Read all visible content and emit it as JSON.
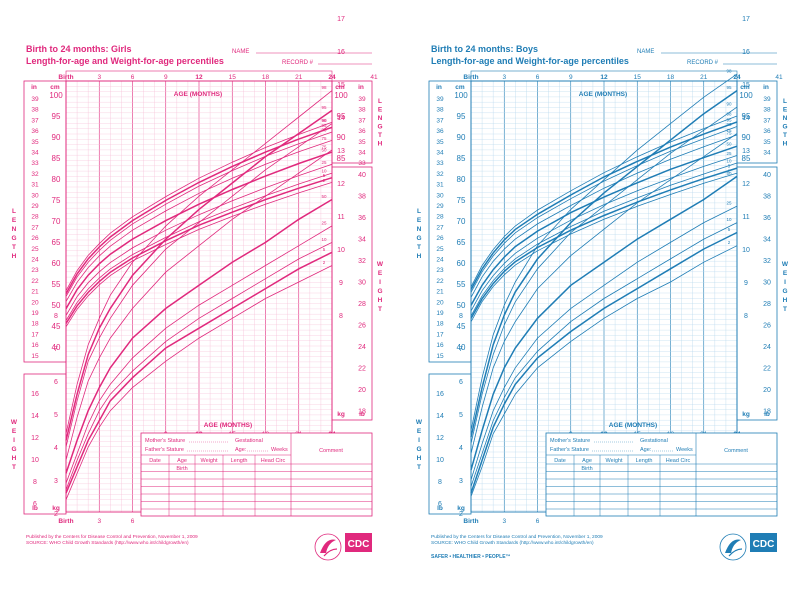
{
  "chart_data": [
    {
      "type": "line",
      "sex": "girls",
      "color": "#e0297d",
      "light_color": "#f6c2d8",
      "title": "Birth to 24 months: Girls",
      "subtitle": "Length-for-age and Weight-for-age percentiles",
      "name_label": "NAME",
      "record_label": "RECORD #",
      "birth_label": "Birth",
      "age_label": "AGE (MONTHS)",
      "x_ticks_top": [
        "3",
        "6",
        "9",
        "12",
        "15",
        "18",
        "21",
        "24"
      ],
      "x_ticks_bottom": [
        "3",
        "6"
      ],
      "x_ticks_mid": [
        "9",
        "12",
        "15",
        "18",
        "21",
        "24"
      ],
      "top_right_number": "41",
      "length_label": "LENGTH",
      "weight_label": "WEIGHT",
      "in_label": "in",
      "cm_label": "cm",
      "lb_label": "lb",
      "kg_label": "kg",
      "length_in_ticks": [
        "39",
        "38",
        "37",
        "36",
        "35",
        "34",
        "33",
        "32",
        "31",
        "30",
        "29",
        "28",
        "27",
        "26",
        "25",
        "24",
        "23",
        "22",
        "21",
        "20",
        "19",
        "18",
        "17",
        "16",
        "15"
      ],
      "length_cm_ticks": [
        "100",
        "95",
        "90",
        "85",
        "80",
        "75",
        "70",
        "65",
        "60",
        "55",
        "50",
        "45",
        "40"
      ],
      "length_right_cm_ticks": [
        "100",
        "95",
        "90",
        "85"
      ],
      "length_right_in_ticks": [
        "39",
        "38",
        "37",
        "36",
        "35",
        "34",
        "33"
      ],
      "weight_right_lb_ticks": [
        "40",
        "38",
        "36",
        "34",
        "32",
        "30",
        "28",
        "26",
        "24",
        "22",
        "20",
        "18"
      ],
      "weight_right_kg_ticks": [
        "18",
        "17",
        "16",
        "15",
        "14",
        "13",
        "12",
        "11",
        "10",
        "9",
        "8"
      ],
      "weight_left_kg_ticks": [
        "8",
        "7",
        "6",
        "5",
        "4",
        "3",
        "2"
      ],
      "weight_left_lb_ticks": [
        "16",
        "14",
        "12",
        "10",
        "8",
        "6"
      ],
      "percentiles": [
        "98",
        "95",
        "90",
        "75",
        "50",
        "25",
        "10",
        "5",
        "2"
      ],
      "age_months": [
        0,
        1,
        2,
        3,
        4,
        6,
        9,
        12,
        15,
        18,
        21,
        24
      ],
      "length_cm_series": [
        {
          "name": "98",
          "values": [
            53.4,
            58.2,
            61.8,
            64.6,
            67.1,
            71.0,
            75.8,
            80.2,
            84.0,
            87.5,
            90.6,
            93.5
          ]
        },
        {
          "name": "95",
          "values": [
            52.7,
            57.4,
            61.0,
            63.8,
            66.2,
            70.1,
            74.9,
            79.2,
            83.0,
            86.4,
            89.5,
            92.3
          ]
        },
        {
          "name": "90",
          "values": [
            52.0,
            56.7,
            60.2,
            63.0,
            65.4,
            69.3,
            74.0,
            78.3,
            82.0,
            85.4,
            88.4,
            91.2
          ]
        },
        {
          "name": "75",
          "values": [
            50.8,
            55.4,
            58.9,
            61.7,
            64.0,
            67.8,
            72.4,
            76.6,
            80.2,
            83.5,
            86.5,
            89.2
          ]
        },
        {
          "name": "50",
          "values": [
            49.1,
            53.7,
            57.1,
            59.8,
            62.1,
            65.7,
            70.1,
            74.0,
            77.5,
            80.7,
            83.7,
            86.4
          ]
        },
        {
          "name": "25",
          "values": [
            47.5,
            52.0,
            55.3,
            57.9,
            60.1,
            63.6,
            67.8,
            71.5,
            74.8,
            77.9,
            80.8,
            83.5
          ]
        },
        {
          "name": "10",
          "values": [
            46.3,
            50.6,
            53.8,
            56.4,
            58.6,
            62.0,
            66.1,
            69.8,
            73.0,
            76.0,
            78.8,
            81.4
          ]
        },
        {
          "name": "5",
          "values": [
            45.6,
            49.8,
            53.0,
            55.6,
            57.8,
            61.2,
            65.3,
            69.0,
            72.1,
            75.1,
            77.8,
            80.3
          ]
        },
        {
          "name": "2",
          "values": [
            44.8,
            49.0,
            52.2,
            54.8,
            57.0,
            60.5,
            64.4,
            68.0,
            71.1,
            74.0,
            76.7,
            79.2
          ]
        }
      ],
      "weight_kg_series": [
        {
          "name": "98",
          "values": [
            4.4,
            5.9,
            7.1,
            7.9,
            8.6,
            9.6,
            10.7,
            11.6,
            12.4,
            13.2,
            14.0,
            14.8
          ]
        },
        {
          "name": "95",
          "values": [
            4.2,
            5.6,
            6.8,
            7.6,
            8.2,
            9.2,
            10.3,
            11.2,
            12.0,
            12.8,
            13.5,
            14.2
          ]
        },
        {
          "name": "90",
          "values": [
            4.0,
            5.4,
            6.6,
            7.3,
            7.9,
            8.9,
            10.0,
            10.8,
            11.6,
            12.4,
            13.1,
            13.8
          ]
        },
        {
          "name": "75",
          "values": [
            3.6,
            4.9,
            6.0,
            6.7,
            7.3,
            8.2,
            9.3,
            10.1,
            10.9,
            11.6,
            12.3,
            13.0
          ]
        },
        {
          "name": "50",
          "values": [
            3.2,
            4.2,
            5.1,
            5.8,
            6.4,
            7.3,
            8.2,
            8.9,
            9.6,
            10.2,
            10.9,
            11.5
          ]
        },
        {
          "name": "25",
          "values": [
            2.9,
            3.8,
            4.7,
            5.4,
            5.9,
            6.7,
            7.6,
            8.3,
            8.9,
            9.5,
            10.1,
            10.7
          ]
        },
        {
          "name": "10",
          "values": [
            2.7,
            3.6,
            4.4,
            5.1,
            5.6,
            6.3,
            7.2,
            7.9,
            8.5,
            9.1,
            9.7,
            10.2
          ]
        },
        {
          "name": "5",
          "values": [
            2.6,
            3.4,
            4.2,
            4.8,
            5.4,
            6.1,
            7.0,
            7.6,
            8.2,
            8.8,
            9.4,
            9.9
          ]
        },
        {
          "name": "2",
          "values": [
            2.4,
            3.2,
            4.0,
            4.6,
            5.1,
            5.8,
            6.6,
            7.3,
            7.9,
            8.5,
            9.0,
            9.5
          ]
        }
      ],
      "table": {
        "mother_stature": "Mother's Stature",
        "father_stature": "Father's Stature",
        "gestational": "Gestational",
        "age_weeks": "Age:",
        "weeks": "Weeks",
        "comment": "Comment",
        "columns": [
          "Date",
          "Age",
          "Weight",
          "Length",
          "Head Circ"
        ],
        "first_age": "Birth"
      },
      "footer_line1": "Published by the Centers for Disease Control and Prevention, November 1, 2009",
      "footer_line2": "SOURCE: WHO Child Growth Standards (http://www.who.int/childgrowth/en)",
      "logo_text": "CDC",
      "tagline": ""
    },
    {
      "type": "line",
      "sex": "boys",
      "color": "#1f7db5",
      "light_color": "#b9d9ee",
      "title": "Birth to 24 months: Boys",
      "subtitle": "Length-for-age and Weight-for-age percentiles",
      "name_label": "NAME",
      "record_label": "RECORD #",
      "birth_label": "Birth",
      "age_label": "AGE (MONTHS)",
      "x_ticks_top": [
        "3",
        "6",
        "9",
        "12",
        "15",
        "18",
        "21",
        "24"
      ],
      "x_ticks_bottom": [
        "3",
        "6"
      ],
      "x_ticks_mid": [
        "9",
        "12",
        "15",
        "18",
        "21",
        "24"
      ],
      "top_right_number": "41",
      "length_label": "LENGTH",
      "weight_label": "WEIGHT",
      "in_label": "in",
      "cm_label": "cm",
      "lb_label": "lb",
      "kg_label": "kg",
      "length_in_ticks": [
        "39",
        "38",
        "37",
        "36",
        "35",
        "34",
        "33",
        "32",
        "31",
        "30",
        "29",
        "28",
        "27",
        "26",
        "25",
        "24",
        "23",
        "22",
        "21",
        "20",
        "19",
        "18",
        "17",
        "16",
        "15"
      ],
      "length_cm_ticks": [
        "100",
        "95",
        "90",
        "85",
        "80",
        "75",
        "70",
        "65",
        "60",
        "55",
        "50",
        "45",
        "40"
      ],
      "length_right_cm_ticks": [
        "100",
        "95",
        "90",
        "85"
      ],
      "length_right_in_ticks": [
        "39",
        "38",
        "37",
        "36",
        "35",
        "34"
      ],
      "weight_right_lb_ticks": [
        "40",
        "38",
        "36",
        "34",
        "32",
        "30",
        "28",
        "26",
        "24",
        "22",
        "20",
        "18"
      ],
      "weight_right_kg_ticks": [
        "18",
        "17",
        "16",
        "15",
        "14",
        "13",
        "12",
        "11",
        "10",
        "9",
        "8"
      ],
      "weight_left_kg_ticks": [
        "8",
        "7",
        "6",
        "5",
        "4",
        "3",
        "2"
      ],
      "weight_left_lb_ticks": [
        "16",
        "14",
        "12",
        "10",
        "8",
        "6"
      ],
      "percentiles": [
        "98",
        "95",
        "90",
        "75",
        "50",
        "25",
        "10",
        "5",
        "2"
      ],
      "age_months": [
        0,
        1,
        2,
        3,
        4,
        6,
        9,
        12,
        15,
        18,
        21,
        24
      ],
      "length_cm_series": [
        {
          "name": "98",
          "values": [
            54.3,
            59.4,
            63.2,
            66.3,
            68.8,
            72.6,
            77.2,
            81.5,
            85.3,
            88.8,
            92.0,
            95.0
          ]
        },
        {
          "name": "95",
          "values": [
            53.7,
            58.6,
            62.4,
            65.5,
            68.0,
            71.6,
            76.2,
            80.5,
            84.2,
            87.6,
            90.7,
            93.6
          ]
        },
        {
          "name": "90",
          "values": [
            53.0,
            57.9,
            61.7,
            64.7,
            67.2,
            70.8,
            75.3,
            79.5,
            83.2,
            86.6,
            89.6,
            92.5
          ]
        },
        {
          "name": "75",
          "values": [
            51.8,
            56.7,
            60.4,
            63.3,
            65.7,
            69.3,
            73.7,
            77.8,
            81.4,
            84.7,
            87.7,
            90.5
          ]
        },
        {
          "name": "50",
          "values": [
            49.9,
            54.7,
            58.4,
            61.4,
            63.9,
            67.6,
            72.0,
            75.7,
            79.1,
            82.3,
            85.1,
            87.8
          ]
        },
        {
          "name": "25",
          "values": [
            48.6,
            53.4,
            57.0,
            59.9,
            62.3,
            65.9,
            70.2,
            73.9,
            77.2,
            80.2,
            83.0,
            85.6
          ]
        },
        {
          "name": "10",
          "values": [
            47.4,
            52.2,
            55.8,
            58.7,
            61.0,
            64.5,
            68.7,
            72.3,
            75.5,
            78.5,
            81.2,
            83.8
          ]
        },
        {
          "name": "5",
          "values": [
            46.8,
            51.5,
            55.1,
            58.0,
            60.3,
            63.7,
            67.8,
            71.3,
            74.5,
            77.4,
            80.1,
            82.6
          ]
        },
        {
          "name": "2",
          "values": [
            46.0,
            50.8,
            54.4,
            57.2,
            59.5,
            62.9,
            66.9,
            70.4,
            73.5,
            76.3,
            79.0,
            81.4
          ]
        }
      ],
      "weight_kg_series": [
        {
          "name": "98",
          "values": [
            4.5,
            6.1,
            7.4,
            8.3,
            9.0,
            10.1,
            11.2,
            12.1,
            13.0,
            13.8,
            14.6,
            15.3
          ]
        },
        {
          "name": "95",
          "values": [
            4.3,
            5.8,
            7.1,
            8.0,
            8.7,
            9.7,
            10.8,
            11.7,
            12.5,
            13.3,
            14.1,
            14.8
          ]
        },
        {
          "name": "90",
          "values": [
            4.1,
            5.6,
            6.8,
            7.7,
            8.4,
            9.4,
            10.5,
            11.3,
            12.1,
            12.9,
            13.6,
            14.3
          ]
        },
        {
          "name": "75",
          "values": [
            3.8,
            5.2,
            6.4,
            7.2,
            7.8,
            8.8,
            9.8,
            10.6,
            11.4,
            12.1,
            12.8,
            13.5
          ]
        },
        {
          "name": "50",
          "values": [
            3.3,
            4.5,
            5.6,
            6.4,
            7.0,
            7.9,
            8.9,
            9.6,
            10.3,
            10.9,
            11.5,
            12.2
          ]
        },
        {
          "name": "25",
          "values": [
            3.0,
            4.1,
            5.1,
            5.8,
            6.4,
            7.3,
            8.2,
            8.9,
            9.6,
            10.2,
            10.8,
            11.3
          ]
        },
        {
          "name": "10",
          "values": [
            2.8,
            3.8,
            4.8,
            5.5,
            6.1,
            6.9,
            7.8,
            8.5,
            9.1,
            9.7,
            10.3,
            10.8
          ]
        },
        {
          "name": "5",
          "values": [
            2.6,
            3.6,
            4.6,
            5.3,
            5.9,
            6.7,
            7.5,
            8.2,
            8.8,
            9.4,
            10.0,
            10.5
          ]
        },
        {
          "name": "2",
          "values": [
            2.5,
            3.4,
            4.4,
            5.0,
            5.6,
            6.4,
            7.2,
            7.9,
            8.5,
            9.0,
            9.6,
            10.1
          ]
        }
      ],
      "table": {
        "mother_stature": "Mother's Stature",
        "father_stature": "Father's Stature",
        "gestational": "Gestational",
        "age_weeks": "Age:",
        "weeks": "Weeks",
        "comment": "Comment",
        "columns": [
          "Date",
          "Age",
          "Weight",
          "Length",
          "Head Circ"
        ],
        "first_age": "Birth"
      },
      "footer_line1": "Published by the Centers for Disease Control and Prevention, November 1, 2009",
      "footer_line2": "SOURCE: WHO Child Growth Standards (http://www.who.int/childgrowth/en)",
      "logo_text": "CDC",
      "tagline": "SAFER • HEALTHIER • PEOPLE™"
    }
  ]
}
